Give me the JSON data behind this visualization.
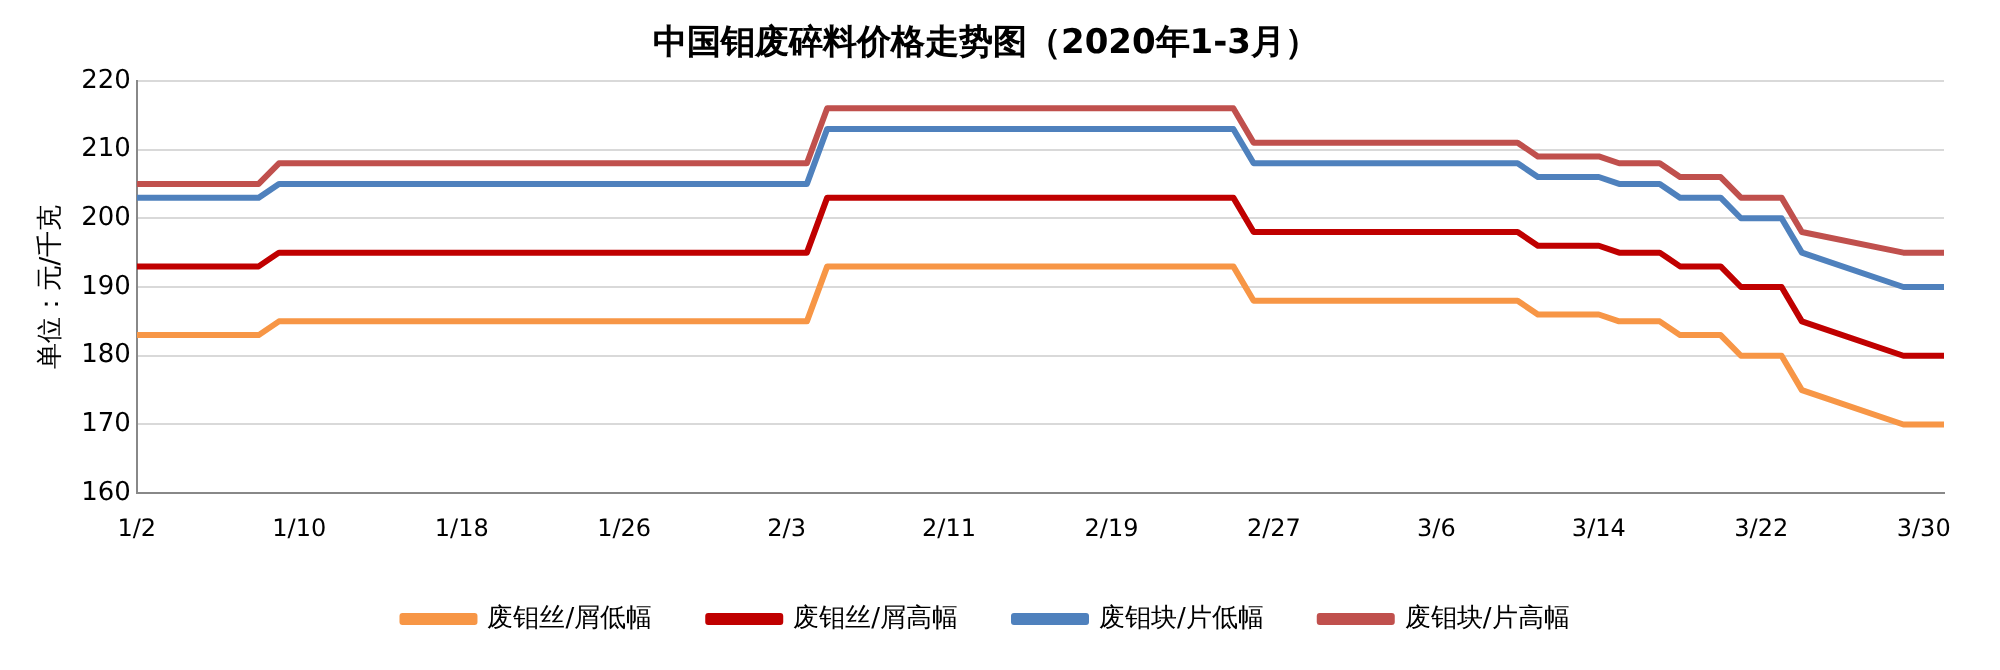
{
  "chart_data": {
    "type": "line",
    "title": "中国钼废碎料价格走势图（2020年1-3月）",
    "ylabel": "单位：元/千克",
    "x": [
      "2020-01-02",
      "2020-01-08",
      "2020-01-09",
      "2020-02-04",
      "2020-02-05",
      "2020-02-25",
      "2020-02-26",
      "2020-03-10",
      "2020-03-11",
      "2020-03-14",
      "2020-03-15",
      "2020-03-17",
      "2020-03-18",
      "2020-03-20",
      "2020-03-21",
      "2020-03-23",
      "2020-03-24",
      "2020-03-29",
      "2020-03-31"
    ],
    "series": [
      {
        "name": "废钼丝/屑低幅",
        "color": "#f79646",
        "values": [
          183,
          183,
          185,
          185,
          193,
          193,
          188,
          188,
          186,
          186,
          185,
          185,
          183,
          183,
          180,
          180,
          175,
          170,
          170
        ]
      },
      {
        "name": "废钼丝/屑高幅",
        "color": "#c00000",
        "values": [
          193,
          193,
          195,
          195,
          203,
          203,
          198,
          198,
          196,
          196,
          195,
          195,
          193,
          193,
          190,
          190,
          185,
          180,
          180
        ]
      },
      {
        "name": "废钼块/片低幅",
        "color": "#4f81bd",
        "values": [
          203,
          203,
          205,
          205,
          213,
          213,
          208,
          208,
          206,
          206,
          205,
          205,
          203,
          203,
          200,
          200,
          195,
          190,
          190
        ]
      },
      {
        "name": "废钼块/片高幅",
        "color": "#c0504d",
        "values": [
          205,
          205,
          208,
          208,
          216,
          216,
          211,
          211,
          209,
          209,
          208,
          208,
          206,
          206,
          203,
          203,
          198,
          195,
          195
        ]
      }
    ],
    "xlim": [
      "2020-01-02",
      "2020-03-31"
    ],
    "xticks": [
      {
        "value": "2020-01-02",
        "label": "1/2"
      },
      {
        "value": "2020-01-10",
        "label": "1/10"
      },
      {
        "value": "2020-01-18",
        "label": "1/18"
      },
      {
        "value": "2020-01-26",
        "label": "1/26"
      },
      {
        "value": "2020-02-03",
        "label": "2/3"
      },
      {
        "value": "2020-02-11",
        "label": "2/11"
      },
      {
        "value": "2020-02-19",
        "label": "2/19"
      },
      {
        "value": "2020-02-27",
        "label": "2/27"
      },
      {
        "value": "2020-03-06",
        "label": "3/6"
      },
      {
        "value": "2020-03-14",
        "label": "3/14"
      },
      {
        "value": "2020-03-22",
        "label": "3/22"
      },
      {
        "value": "2020-03-30",
        "label": "3/30"
      }
    ],
    "ylim": [
      160,
      220
    ],
    "yticks": [
      160,
      170,
      180,
      190,
      200,
      210,
      220
    ],
    "grid": "y",
    "legend": "bottom",
    "marker": "none",
    "line_style": "solid"
  }
}
